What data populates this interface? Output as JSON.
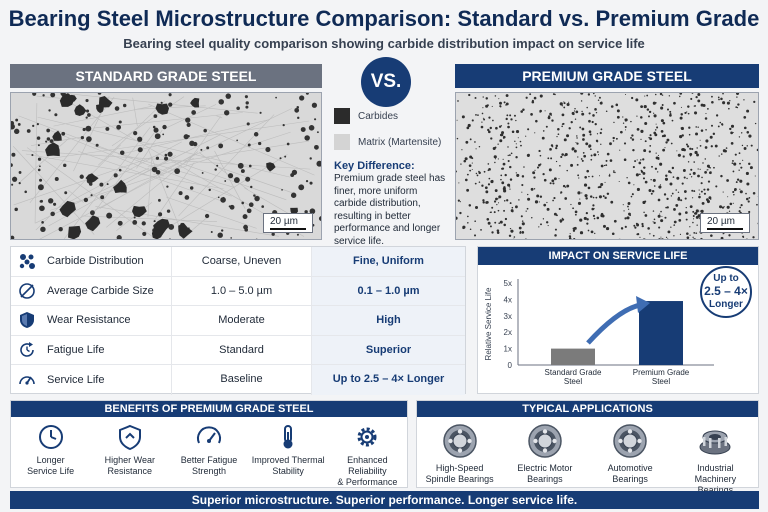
{
  "header": {
    "title": "Bearing Steel Microstructure Comparison: Standard vs. Premium Grade",
    "subtitle": "Bearing steel quality comparison showing carbide distribution impact on service life"
  },
  "panels": {
    "standard_label": "STANDARD GRADE STEEL",
    "premium_label": "PREMIUM GRADE STEEL",
    "vs_label": "VS.",
    "scale_bar": "20 µm"
  },
  "legend": {
    "carbides": "Carbides",
    "matrix": "Matrix (Martensite)",
    "carbide_color": "#2b2b2b",
    "matrix_color": "#d4d4d4"
  },
  "key_difference": {
    "title": "Key Difference:",
    "text": "Premium grade steel has finer, more uniform carbide distribution, resulting in better performance and longer service life."
  },
  "comparison": [
    {
      "icon": "carbide-cluster-icon",
      "label": "Carbide Distribution",
      "standard": "Coarse, Uneven",
      "premium": "Fine, Uniform"
    },
    {
      "icon": "diameter-icon",
      "label": "Average Carbide Size",
      "standard": "1.0 – 5.0 µm",
      "premium": "0.1 – 1.0 µm"
    },
    {
      "icon": "shield-icon",
      "label": "Wear Resistance",
      "standard": "Moderate",
      "premium": "High"
    },
    {
      "icon": "cycle-icon",
      "label": "Fatigue Life",
      "standard": "Standard",
      "premium": "Superior"
    },
    {
      "icon": "gauge-icon",
      "label": "Service Life",
      "standard": "Baseline",
      "premium": "Up to 2.5 – 4× Longer"
    }
  ],
  "impact": {
    "title": "IMPACT ON SERVICE LIFE",
    "callout": [
      "Up to",
      "2.5 – 4×",
      "Longer"
    ]
  },
  "chart_data": {
    "type": "bar",
    "categories": [
      "Standard Grade Steel",
      "Premium Grade Steel"
    ],
    "category_lines": [
      [
        "Standard Grade",
        "Steel"
      ],
      [
        "Premium Grade",
        "Steel"
      ]
    ],
    "values": [
      1,
      3.9
    ],
    "ylabel": "Relative Service Life",
    "ylim": [
      0,
      5
    ],
    "yticks": [
      "0",
      "1x",
      "2x",
      "3x",
      "4x",
      "5x"
    ],
    "colors": [
      "#7b7b7b",
      "#173c75"
    ]
  },
  "benefits": {
    "title": "BENEFITS OF PREMIUM GRADE STEEL",
    "items": [
      {
        "icon": "clock-icon",
        "lines": [
          "Longer",
          "Service Life"
        ]
      },
      {
        "icon": "shield-icon",
        "lines": [
          "Higher Wear",
          "Resistance"
        ]
      },
      {
        "icon": "gauge-icon",
        "lines": [
          "Better Fatigue",
          "Strength"
        ]
      },
      {
        "icon": "thermometer-icon",
        "lines": [
          "Improved Thermal",
          "Stability"
        ]
      },
      {
        "icon": "gear-icon",
        "lines": [
          "Enhanced Reliability",
          "& Performance"
        ]
      }
    ]
  },
  "applications": {
    "title": "TYPICAL APPLICATIONS",
    "items": [
      {
        "icon": "ball-bearing-icon",
        "lines": [
          "High-Speed",
          "Spindle Bearings"
        ]
      },
      {
        "icon": "ball-bearing-icon",
        "lines": [
          "Electric Motor",
          "Bearings"
        ]
      },
      {
        "icon": "ball-bearing-icon",
        "lines": [
          "Automotive",
          "Bearings"
        ]
      },
      {
        "icon": "tapered-roller-bearing-icon",
        "lines": [
          "Industrial Machinery",
          "Bearings"
        ]
      }
    ]
  },
  "footer": "Superior microstructure. Superior performance. Longer service life."
}
